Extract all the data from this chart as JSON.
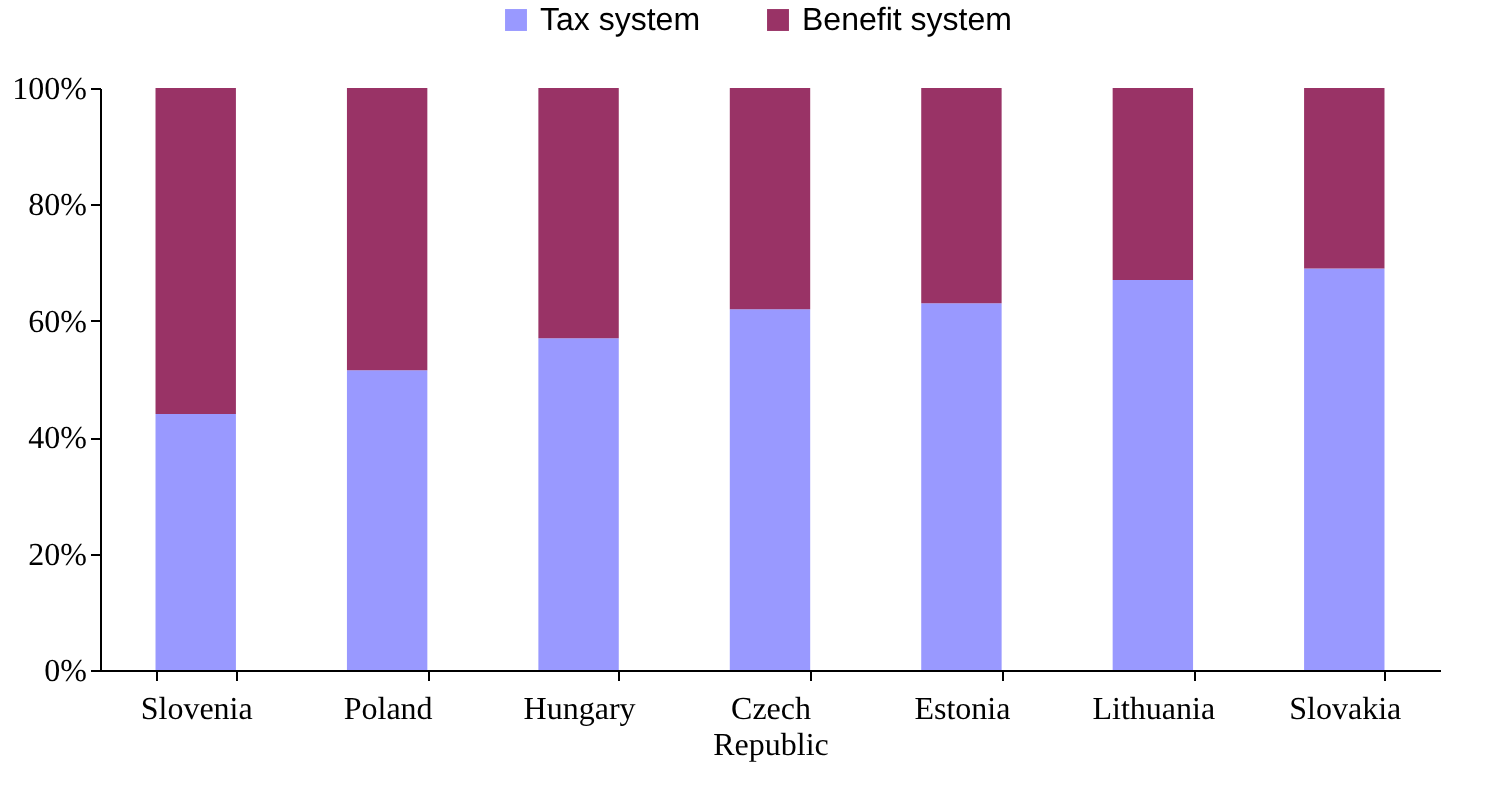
{
  "chart_data": {
    "type": "bar",
    "stacked": true,
    "categories": [
      "Slovenia",
      "Poland",
      "Hungary",
      "Czech Republic",
      "Estonia",
      "Lithuania",
      "Slovakia"
    ],
    "series": [
      {
        "name": "Tax system",
        "color": "#9999ff",
        "values": [
          44,
          51.5,
          57,
          62,
          63,
          67,
          69
        ]
      },
      {
        "name": "Benefit system",
        "color": "#993366",
        "values": [
          56,
          48.5,
          43,
          38,
          37,
          33,
          31
        ]
      }
    ],
    "ylim": [
      0,
      100
    ],
    "yticks": [
      {
        "value": 0,
        "label": "0%"
      },
      {
        "value": 20,
        "label": "20%"
      },
      {
        "value": 40,
        "label": "40%"
      },
      {
        "value": 60,
        "label": "60%"
      },
      {
        "value": 80,
        "label": "80%"
      },
      {
        "value": 100,
        "label": "100%"
      }
    ],
    "grid": false,
    "legend": "top"
  }
}
